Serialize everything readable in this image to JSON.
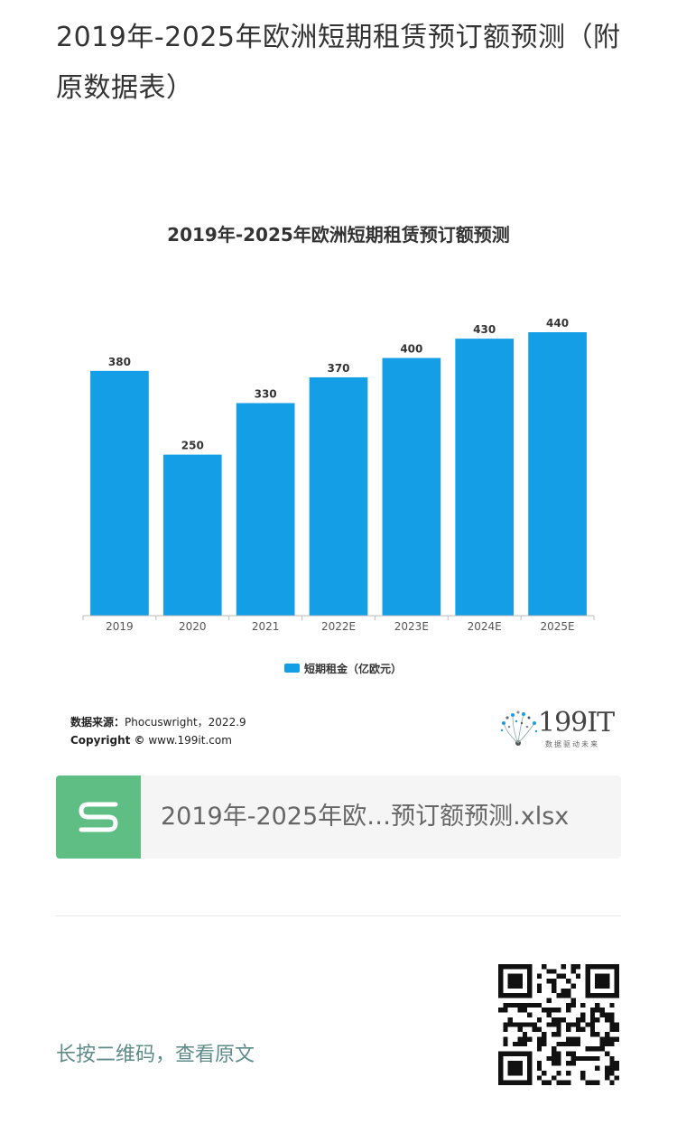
{
  "article": {
    "title": "2019年-2025年欧洲短期租赁预订额预测（附原数据表）"
  },
  "chart_data": {
    "type": "bar",
    "title": "2019年-2025年欧洲短期租赁预订额预测",
    "categories": [
      "2019",
      "2020",
      "2021",
      "2022E",
      "2023E",
      "2024E",
      "2025E"
    ],
    "series": [
      {
        "name": "短期租金（亿欧元）",
        "values": [
          380,
          250,
          330,
          370,
          400,
          430,
          440
        ],
        "color": "#139ee6"
      }
    ],
    "ylim": [
      0,
      440
    ],
    "grid": false,
    "legend": "bottom",
    "data_labels": true
  },
  "chart_footer": {
    "source_label": "数据来源：",
    "source_text": "Phocuswright，2022.9",
    "copyright_label": "Copyright ©",
    "copyright_text": " www.199it.com"
  },
  "brand": {
    "name": "199IT",
    "tagline": "数据驱动未来"
  },
  "attachment": {
    "file_name": "2019年-2025年欧…预订额预测.xlsx",
    "icon": "spreadsheet-s-icon",
    "icon_color": "#5fbe83"
  },
  "qr": {
    "hint": "长按二维码，查看原文",
    "icon": "qr-code-icon"
  }
}
